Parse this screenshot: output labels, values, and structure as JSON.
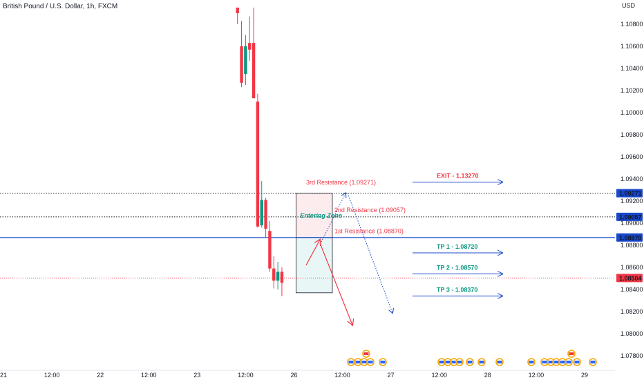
{
  "header": {
    "title": "British Pound / U.S. Dollar, 1h, FXCM"
  },
  "chart_data": {
    "type": "candlestick",
    "currency_label": "USD",
    "ylim": [
      1.0767,
      1.1095
    ],
    "yticks": [
      {
        "value": 1.108,
        "label": "1.10800"
      },
      {
        "value": 1.106,
        "label": "1.10600"
      },
      {
        "value": 1.104,
        "label": "1.10400"
      },
      {
        "value": 1.102,
        "label": "1.10200"
      },
      {
        "value": 1.1,
        "label": "1.10000"
      },
      {
        "value": 1.098,
        "label": "1.09800"
      },
      {
        "value": 1.096,
        "label": "1.09600"
      },
      {
        "value": 1.094,
        "label": "1.09400"
      },
      {
        "value": 1.092,
        "label": "1.09200"
      },
      {
        "value": 1.09,
        "label": "1.09000"
      },
      {
        "value": 1.088,
        "label": "1.08800"
      },
      {
        "value": 1.086,
        "label": "1.08600"
      },
      {
        "value": 1.084,
        "label": "1.08400"
      },
      {
        "value": 1.082,
        "label": "1.08200"
      },
      {
        "value": 1.08,
        "label": "1.08000"
      },
      {
        "value": 1.078,
        "label": "1.07800"
      }
    ],
    "xticks": [
      {
        "t": 0,
        "label": "21"
      },
      {
        "t": 12,
        "label": "12:00"
      },
      {
        "t": 24,
        "label": "22"
      },
      {
        "t": 36,
        "label": "12:00"
      },
      {
        "t": 48,
        "label": "23"
      },
      {
        "t": 60,
        "label": "12:00"
      },
      {
        "t": 72,
        "label": "26"
      },
      {
        "t": 84,
        "label": "12:00"
      },
      {
        "t": 96,
        "label": "27"
      },
      {
        "t": 108,
        "label": "12:00"
      },
      {
        "t": 120,
        "label": "28"
      },
      {
        "t": 132,
        "label": "12:00"
      },
      {
        "t": 144,
        "label": "29"
      }
    ],
    "candles": [
      {
        "t": 58.0,
        "o": 1.1095,
        "h": 1.1095,
        "l": 1.108,
        "c": 1.109
      },
      {
        "t": 59.0,
        "o": 1.106,
        "h": 1.1083,
        "l": 1.1023,
        "c": 1.1027
      },
      {
        "t": 60.0,
        "o": 1.1035,
        "h": 1.107,
        "l": 1.1025,
        "c": 1.106
      },
      {
        "t": 61.0,
        "o": 1.1063,
        "h": 1.1087,
        "l": 1.1047,
        "c": 1.1057
      },
      {
        "t": 62.0,
        "o": 1.1063,
        "h": 1.1095,
        "l": 1.1013,
        "c": 1.1013
      },
      {
        "t": 63.0,
        "o": 1.101,
        "h": 1.1017,
        "l": 1.0896,
        "c": 1.0897
      },
      {
        "t": 64.0,
        "o": 1.0898,
        "h": 1.0938,
        "l": 1.0896,
        "c": 1.0921
      },
      {
        "t": 65.0,
        "o": 1.0921,
        "h": 1.0923,
        "l": 1.0887,
        "c": 1.0895
      },
      {
        "t": 66.0,
        "o": 1.0893,
        "h": 1.0902,
        "l": 1.0856,
        "c": 1.0859
      },
      {
        "t": 67.0,
        "o": 1.0859,
        "h": 1.087,
        "l": 1.0841,
        "c": 1.0848
      },
      {
        "t": 68.0,
        "o": 1.0848,
        "h": 1.0865,
        "l": 1.084,
        "c": 1.0856
      },
      {
        "t": 69.0,
        "o": 1.0856,
        "h": 1.086,
        "l": 1.0834,
        "c": 1.0846
      }
    ],
    "horizontal_lines": [
      {
        "value": 1.09271,
        "label": "1.09271",
        "style": "dotted",
        "color": "#131722",
        "badge_color": "#1848cc"
      },
      {
        "value": 1.09057,
        "label": "1.09057",
        "style": "dotted",
        "color": "#131722",
        "badge_color": "#1848cc"
      },
      {
        "value": 1.0887,
        "label": "1.08870",
        "style": "solid",
        "color": "#1848cc",
        "badge_color": "#1848cc"
      },
      {
        "value": 1.08504,
        "label": "1.08504",
        "style": "dotted",
        "color": "#f23645",
        "badge_color": "#f23645"
      }
    ],
    "zones": [
      {
        "name": "resistance-zone",
        "t0": 72.5,
        "t1": 81.5,
        "top": 1.09271,
        "bottom": 1.0887,
        "fill": "#fdecee",
        "label": "Entering Zone"
      },
      {
        "name": "target-zone",
        "t0": 72.5,
        "t1": 81.5,
        "top": 1.0887,
        "bottom": 1.0837,
        "fill": "#e8f6f6"
      }
    ],
    "resistance_labels": [
      {
        "text": "3rd Resistance (1.09271)",
        "t": 75.0,
        "value": 1.0935
      },
      {
        "text": "2nd Resistance (1.09057)",
        "t": 82.0,
        "value": 1.091
      },
      {
        "text": "1st Resistance (1.08870)",
        "t": 82.0,
        "value": 1.0891
      }
    ],
    "targets": [
      {
        "text": "EXIT - 1.13270",
        "value": 1.0939,
        "color": "#f23645"
      },
      {
        "text": "TP 1 - 1.08720",
        "value": 1.0875,
        "color": "#089981"
      },
      {
        "text": "TP 2 - 1.08570",
        "value": 1.0856,
        "color": "#089981"
      },
      {
        "text": "TP 3 - 1.08370",
        "value": 1.0836,
        "color": "#089981"
      }
    ],
    "grid": false
  },
  "colors": {
    "up": "#089981",
    "down": "#f23645",
    "accent": "#1848cc",
    "arrow": "#1848cc"
  }
}
